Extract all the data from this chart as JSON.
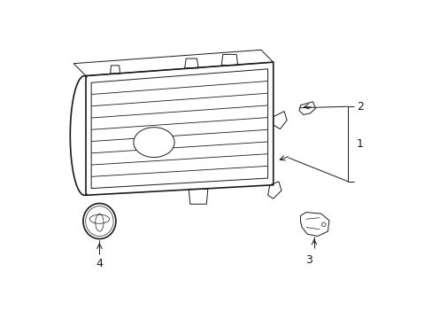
{
  "bg_color": "#ffffff",
  "line_color": "#1a1a1a",
  "lw_main": 1.2,
  "lw_thin": 0.7,
  "lw_slat": 0.6,
  "fig_width": 4.89,
  "fig_height": 3.6,
  "dpi": 100,
  "label_fontsize": 9
}
